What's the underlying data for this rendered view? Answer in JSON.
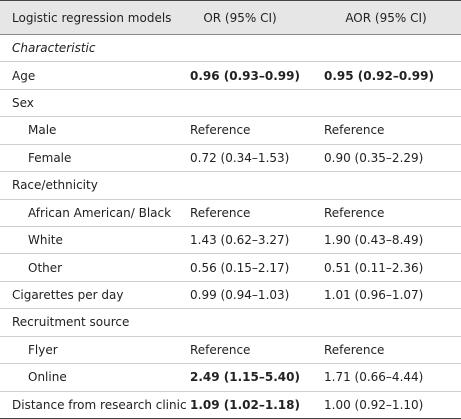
{
  "table": {
    "header": [
      "Logistic regression models",
      "OR (95% CI)",
      "AOR (95% CI)"
    ],
    "rows": [
      {
        "label": "Characteristic",
        "italic": true
      },
      {
        "label": "Age",
        "or": "0.96 (0.93–0.99)",
        "aor": "0.95 (0.92–0.99)",
        "or_bold": true,
        "aor_bold": true
      },
      {
        "label": "Sex"
      },
      {
        "label": "Male",
        "indent": true,
        "or": "Reference",
        "aor": "Reference"
      },
      {
        "label": "Female",
        "indent": true,
        "or": "0.72 (0.34–1.53)",
        "aor": "0.90 (0.35–2.29)"
      },
      {
        "label": "Race/ethnicity"
      },
      {
        "label": "African American/ Black",
        "indent": true,
        "or": "Reference",
        "aor": "Reference"
      },
      {
        "label": "White",
        "indent": true,
        "or": "1.43 (0.62–3.27)",
        "aor": "1.90 (0.43–8.49)"
      },
      {
        "label": "Other",
        "indent": true,
        "or": "0.56 (0.15–2.17)",
        "aor": "0.51 (0.11–2.36)"
      },
      {
        "label": "Cigarettes per day",
        "or": "0.99 (0.94–1.03)",
        "aor": "1.01 (0.96–1.07)"
      },
      {
        "label": "Recruitment source"
      },
      {
        "label": "Flyer",
        "indent": true,
        "or": "Reference",
        "aor": "Reference"
      },
      {
        "label": "Online",
        "indent": true,
        "or": "2.49 (1.15–5.40)",
        "aor": "1.71 (0.66–4.44)",
        "or_bold": true
      },
      {
        "label": "Distance from research clinic",
        "or": "1.09 (1.02–1.18)",
        "aor": "1.00 (0.92–1.10)",
        "or_bold": true
      }
    ]
  }
}
